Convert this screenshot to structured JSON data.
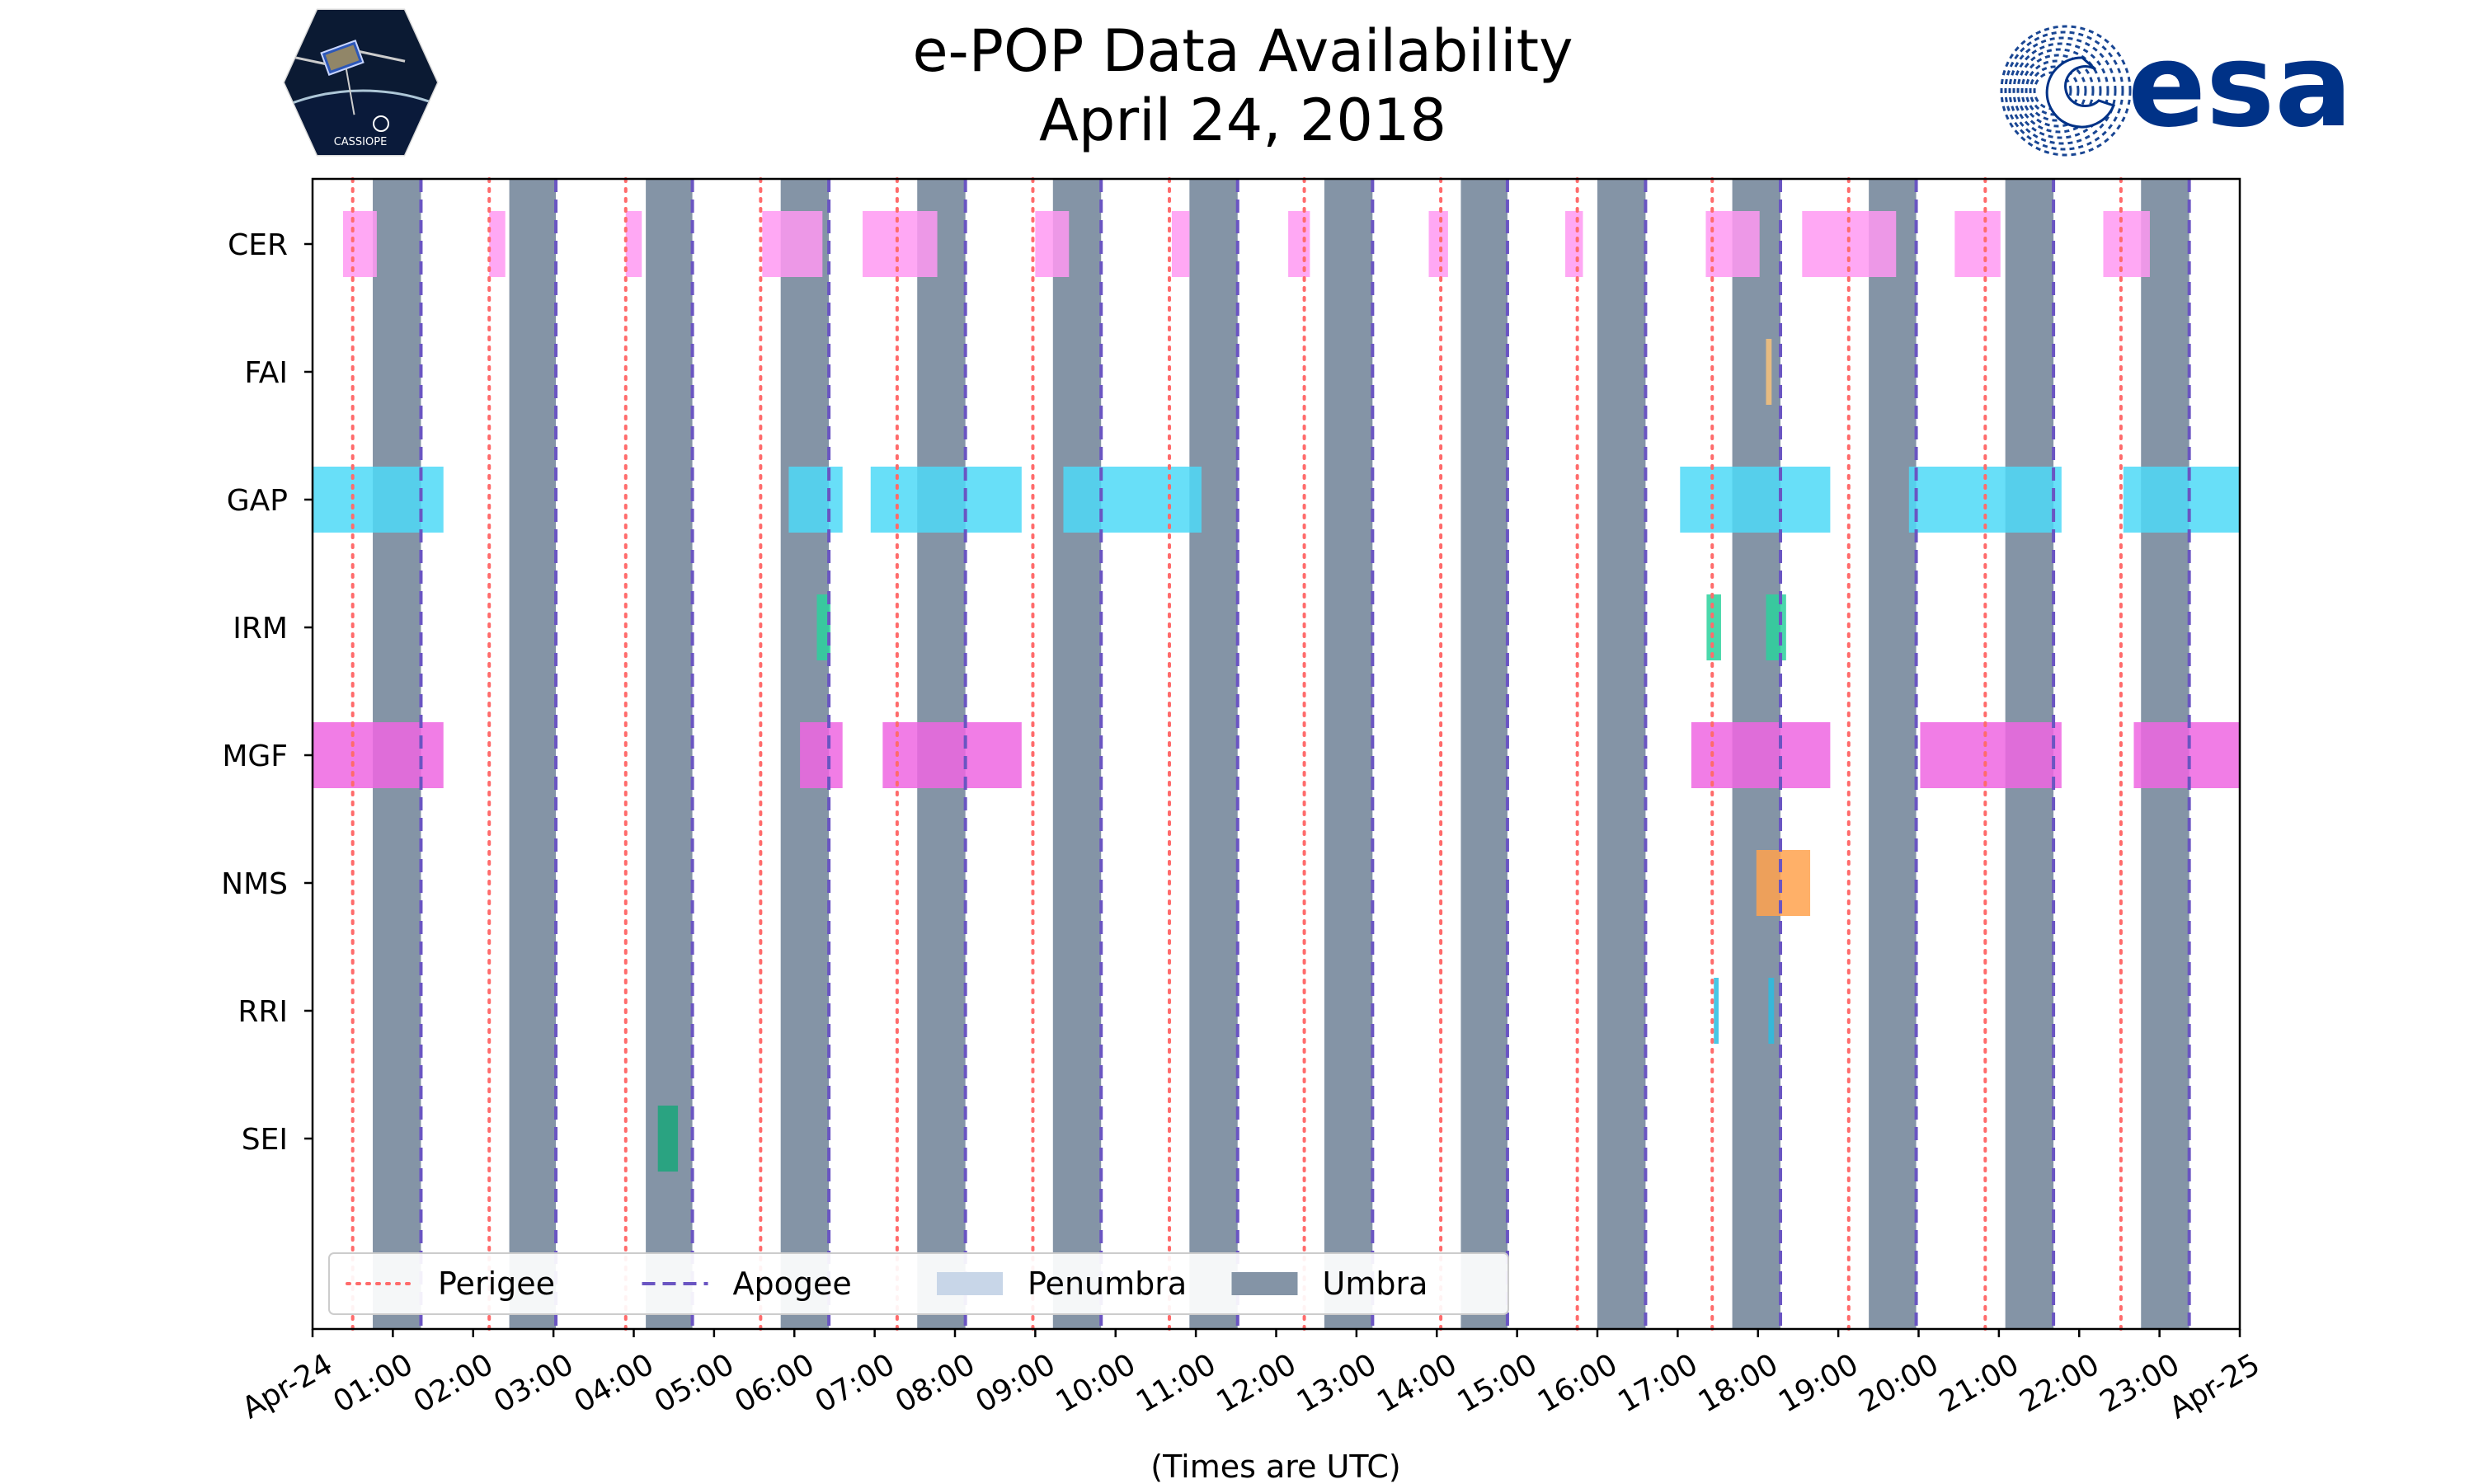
{
  "chart_data": {
    "type": "timeline",
    "title_line1": "e-POP Data Availability",
    "title_line2": "April 24, 2018",
    "xlabel": "(Times are UTC)",
    "xlim_hours": [
      0,
      24
    ],
    "x_tick_labels": [
      "Apr-24",
      "01:00",
      "02:00",
      "03:00",
      "04:00",
      "05:00",
      "06:00",
      "07:00",
      "08:00",
      "09:00",
      "10:00",
      "11:00",
      "12:00",
      "13:00",
      "14:00",
      "15:00",
      "16:00",
      "17:00",
      "18:00",
      "19:00",
      "20:00",
      "21:00",
      "22:00",
      "23:00",
      "Apr-25"
    ],
    "instruments": [
      "CER",
      "FAI",
      "GAP",
      "IRM",
      "MGF",
      "NMS",
      "RRI",
      "SEI"
    ],
    "colors": {
      "CER": "#ff99f2",
      "FAI": "#f7c27a",
      "GAP": "#4dd9f7",
      "IRM": "#2bd19c",
      "MGF": "#ee66e2",
      "NMS": "#ffa24d",
      "RRI": "#29bde0",
      "SEI": "#1aa67a",
      "umbra": "#8494a6",
      "penumbra": "#c8d6e8",
      "perigee": "#ff6b6b",
      "apogee": "#6a55c2"
    },
    "umbra": [
      [
        0.75,
        1.35
      ],
      [
        2.45,
        3.03
      ],
      [
        4.15,
        4.73
      ],
      [
        5.83,
        6.43
      ],
      [
        7.53,
        8.13
      ],
      [
        9.22,
        9.82
      ],
      [
        10.92,
        11.52
      ],
      [
        12.6,
        13.2
      ],
      [
        14.3,
        14.88
      ],
      [
        16.0,
        16.6
      ],
      [
        17.68,
        18.28
      ],
      [
        19.38,
        19.97
      ],
      [
        21.08,
        21.68
      ],
      [
        22.77,
        23.37
      ]
    ],
    "perigee": [
      0.5,
      2.2,
      3.9,
      5.58,
      7.28,
      8.97,
      10.67,
      12.35,
      14.05,
      15.75,
      17.43,
      19.13,
      20.83,
      22.52
    ],
    "apogee": [
      1.35,
      3.03,
      4.73,
      6.43,
      8.13,
      9.82,
      11.52,
      13.2,
      14.88,
      16.6,
      18.28,
      19.97,
      21.68,
      23.37
    ],
    "segments": {
      "CER": [
        [
          0.38,
          0.8
        ],
        [
          2.2,
          2.4
        ],
        [
          3.9,
          4.1
        ],
        [
          5.6,
          6.35
        ],
        [
          6.85,
          7.78
        ],
        [
          9.0,
          9.42
        ],
        [
          10.7,
          10.92
        ],
        [
          12.15,
          12.42
        ],
        [
          13.9,
          14.14
        ],
        [
          15.6,
          15.82
        ],
        [
          17.35,
          18.02
        ],
        [
          18.55,
          19.72
        ],
        [
          20.45,
          21.02
        ],
        [
          22.3,
          22.88
        ]
      ],
      "FAI": [
        [
          18.1,
          18.17
        ]
      ],
      "GAP": [
        [
          0.0,
          1.63
        ],
        [
          5.93,
          6.6
        ],
        [
          6.95,
          8.83
        ],
        [
          9.35,
          11.07
        ],
        [
          17.03,
          18.9
        ],
        [
          19.88,
          21.78
        ],
        [
          22.55,
          24.0
        ]
      ],
      "IRM": [
        [
          6.28,
          6.45
        ],
        [
          17.36,
          17.54
        ],
        [
          18.1,
          18.35
        ]
      ],
      "MGF": [
        [
          0.0,
          1.63
        ],
        [
          6.07,
          6.6
        ],
        [
          7.1,
          8.83
        ],
        [
          17.17,
          18.9
        ],
        [
          20.02,
          21.78
        ],
        [
          22.68,
          24.0
        ]
      ],
      "NMS": [
        [
          17.98,
          18.65
        ]
      ],
      "RRI": [
        [
          17.45,
          17.51
        ],
        [
          18.13,
          18.2
        ]
      ],
      "SEI": [
        [
          4.3,
          4.55
        ]
      ]
    },
    "legend": [
      {
        "label": "Perigee",
        "kind": "dotted",
        "color_key": "perigee"
      },
      {
        "label": "Apogee",
        "kind": "dashed",
        "color_key": "apogee"
      },
      {
        "label": "Penumbra",
        "kind": "patch",
        "color_key": "penumbra"
      },
      {
        "label": "Umbra",
        "kind": "patch",
        "color_key": "umbra"
      }
    ],
    "legend_position": "lower-left"
  },
  "logos": {
    "left_name": "CASSIOPE",
    "right_name": "esa"
  }
}
